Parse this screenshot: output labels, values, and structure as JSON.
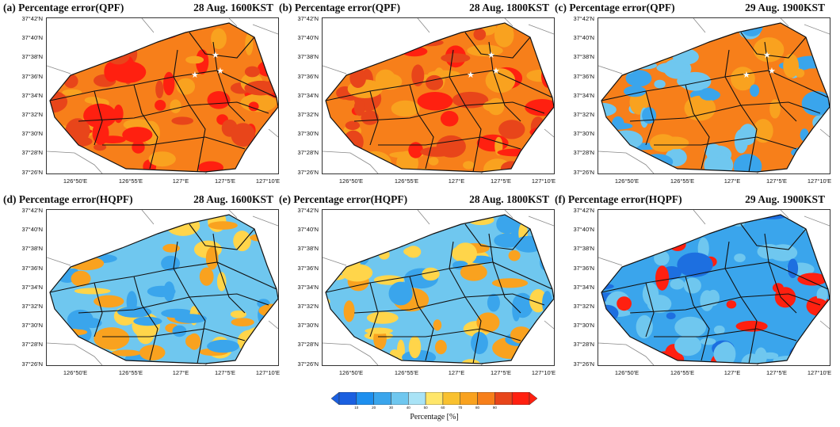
{
  "panels": [
    {
      "title": "(a) Percentage error(QPF)",
      "time": "28 Aug. 1600KST",
      "palette": [
        "#f77f1a",
        "#e8451a",
        "#ff2010",
        "#f9a21f"
      ],
      "ratio": 0.65,
      "stars": true
    },
    {
      "title": "(b) Percentage error(QPF)",
      "time": "28 Aug. 1800KST",
      "palette": [
        "#f77f1a",
        "#ff2010",
        "#f9a21f",
        "#e8451a"
      ],
      "ratio": 0.7,
      "stars": true
    },
    {
      "title": "(c) Percentage error(QPF)",
      "time": "29 Aug. 1900KST",
      "palette": [
        "#f77f1a",
        "#f9a21f",
        "#6fc7ef",
        "#3aa5ec"
      ],
      "ratio": 0.45,
      "stars": true
    },
    {
      "title": "(d) Percentage error(HQPF)",
      "time": "28 Aug. 1600KST",
      "palette": [
        "#6fc7ef",
        "#3aa5ec",
        "#f9a21f",
        "#ffd54a"
      ],
      "ratio": 0.4,
      "stars": false
    },
    {
      "title": "(e) Percentage error(HQPF)",
      "time": "28 Aug. 1800KST",
      "palette": [
        "#6fc7ef",
        "#f9a21f",
        "#3aa5ec",
        "#ffd54a"
      ],
      "ratio": 0.45,
      "stars": false
    },
    {
      "title": "(f) Percentage error(HQPF)",
      "time": "29 Aug. 1900KST",
      "palette": [
        "#3aa5ec",
        "#6fc7ef",
        "#ff2010",
        "#1d6fe0"
      ],
      "ratio": 0.35,
      "stars": false
    }
  ],
  "lat_labels": [
    "37°42'N",
    "37°40'N",
    "37°38'N",
    "37°36'N",
    "37°34'N",
    "37°32'N",
    "37°30'N",
    "37°28'N",
    "37°26'N"
  ],
  "lon_labels": [
    "126°50'E",
    "126°55'E",
    "127°E",
    "127°5'E",
    "127°10'E"
  ],
  "colorbar": {
    "title": "Percentage [%]",
    "ticks": [
      "10",
      "20",
      "30",
      "40",
      "50",
      "60",
      "70",
      "80",
      "90"
    ],
    "colors": [
      "#1a5fe0",
      "#1d8fef",
      "#3aa5ec",
      "#6fc7ef",
      "#a9e3f6",
      "#ffe66a",
      "#f9c12f",
      "#f9a21f",
      "#f77f1a",
      "#e8451a",
      "#ff2010"
    ]
  }
}
